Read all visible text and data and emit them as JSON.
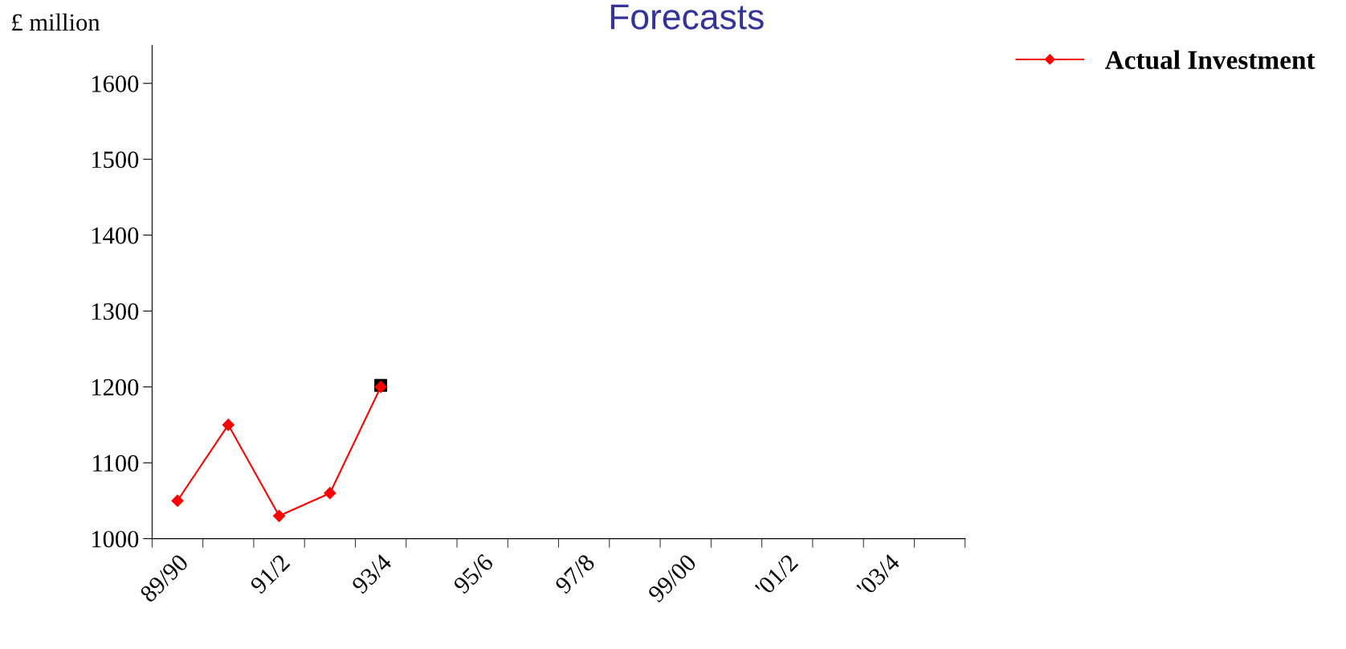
{
  "chart_data": {
    "type": "line",
    "title": "Forecasts",
    "ylabel": "£ million",
    "categories": [
      "89/90",
      null,
      "91/2",
      null,
      "93/4",
      null,
      "95/6",
      null,
      "97/8",
      null,
      "99/00",
      null,
      "'01/2",
      null,
      "'03/4",
      null
    ],
    "series": [
      {
        "name": "Actual Investment",
        "color": "#ff0000",
        "marker": "diamond",
        "values": [
          1050,
          1150,
          1030,
          1060,
          1200,
          null,
          null,
          null,
          null,
          null,
          null,
          null,
          null,
          null,
          null,
          null
        ]
      },
      {
        "type": "scatter",
        "color": "#000000",
        "marker": "square",
        "values": [
          null,
          null,
          null,
          null,
          1202,
          null,
          null,
          null,
          null,
          null,
          null,
          null,
          null,
          null,
          null,
          null
        ]
      }
    ],
    "ylim": [
      1000,
      1650
    ],
    "yticks": [
      1000,
      1100,
      1200,
      1300,
      1400,
      1500,
      1600
    ],
    "grid": false,
    "legend": "top right"
  }
}
